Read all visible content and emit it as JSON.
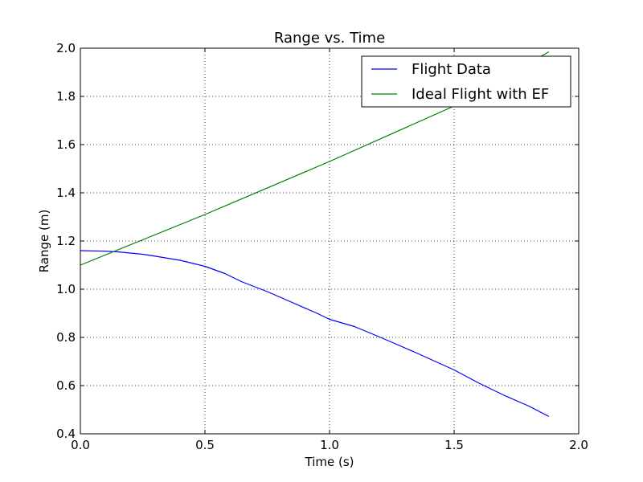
{
  "chart_data": {
    "type": "line",
    "title": "Range vs. Time",
    "xlabel": "Time (s)",
    "ylabel": "Range (m)",
    "xlim": [
      0.0,
      2.0
    ],
    "ylim": [
      0.4,
      2.0
    ],
    "xticks": [
      "0.0",
      "0.5",
      "1.0",
      "1.5",
      "2.0"
    ],
    "yticks": [
      "0.4",
      "0.6",
      "0.8",
      "1.0",
      "1.2",
      "1.4",
      "1.6",
      "1.8",
      "2.0"
    ],
    "grid": true,
    "legend_position": "top-right",
    "series": [
      {
        "name": "Flight Data",
        "color": "#0000ff",
        "x": [
          0.0,
          0.1,
          0.15,
          0.2,
          0.25,
          0.3,
          0.4,
          0.5,
          0.58,
          0.65,
          0.75,
          0.85,
          0.95,
          1.0,
          1.1,
          1.17,
          1.25,
          1.35,
          1.5,
          1.6,
          1.7,
          1.8,
          1.88
        ],
        "y": [
          1.16,
          1.158,
          1.155,
          1.15,
          1.145,
          1.137,
          1.12,
          1.095,
          1.065,
          1.03,
          0.99,
          0.945,
          0.9,
          0.875,
          0.845,
          0.815,
          0.78,
          0.735,
          0.665,
          0.61,
          0.56,
          0.515,
          0.472
        ]
      },
      {
        "name": "Ideal Flight with EF",
        "color": "#008000",
        "x": [
          0.0,
          0.5,
          1.0,
          1.5,
          1.88
        ],
        "y": [
          1.1,
          1.31,
          1.53,
          1.76,
          1.985
        ]
      }
    ]
  }
}
